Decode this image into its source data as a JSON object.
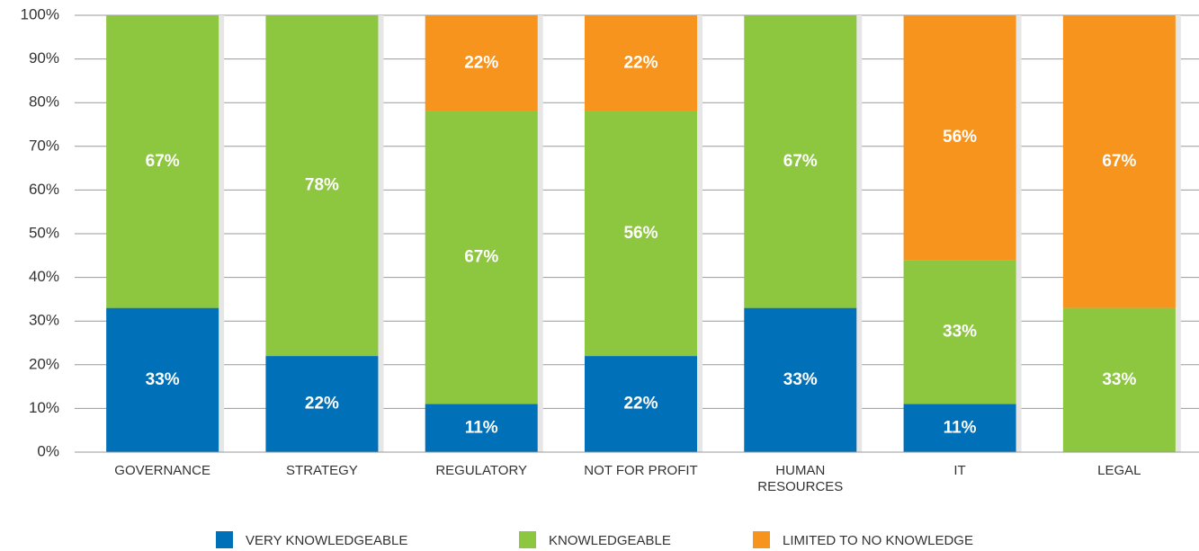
{
  "chart_data": {
    "type": "stacked_bar",
    "categories": [
      "GOVERNANCE",
      "STRATEGY",
      "REGULATORY",
      "NOT FOR PROFIT",
      "HUMAN RESOURCES",
      "IT",
      "LEGAL"
    ],
    "series": [
      {
        "name": "VERY KNOWLEDGEABLE",
        "color": "#0070b8",
        "values": [
          33,
          22,
          11,
          22,
          33,
          11,
          null
        ],
        "value_labels": [
          "33%",
          "22%",
          "11%",
          "22%",
          "33%",
          "11%",
          null
        ]
      },
      {
        "name": "KNOWLEDGEABLE",
        "color": "#8dc63f",
        "values": [
          67,
          78,
          67,
          56,
          67,
          33,
          33
        ],
        "value_labels": [
          "67%",
          "78%",
          "67%",
          "56%",
          "67%",
          "33%",
          "33%"
        ]
      },
      {
        "name": "LIMITED TO NO KNOWLEDGE",
        "color": "#f7941d",
        "values": [
          null,
          null,
          22,
          22,
          null,
          56,
          67
        ],
        "value_labels": [
          null,
          null,
          "22%",
          "22%",
          null,
          "56%",
          "67%"
        ]
      }
    ],
    "ylim": [
      0,
      100
    ],
    "yticks": [
      {
        "value": 0,
        "label": "0%"
      },
      {
        "value": 10,
        "label": "10%"
      },
      {
        "value": 20,
        "label": "20%"
      },
      {
        "value": 30,
        "label": "30%"
      },
      {
        "value": 40,
        "label": "40%"
      },
      {
        "value": 50,
        "label": "50%"
      },
      {
        "value": 60,
        "label": "60%"
      },
      {
        "value": 70,
        "label": "70%"
      },
      {
        "value": 80,
        "label": "80%"
      },
      {
        "value": 90,
        "label": "90%"
      },
      {
        "value": 100,
        "label": "100%"
      }
    ],
    "grid": true,
    "legend": "bottom"
  }
}
